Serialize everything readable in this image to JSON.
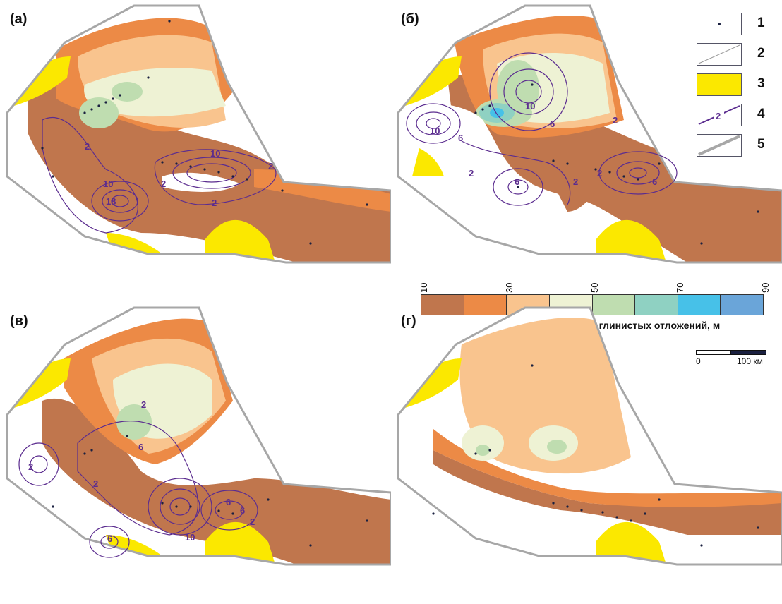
{
  "panels": [
    {
      "label": "(а)",
      "contour_labels": [
        "2",
        "10",
        "18",
        "10",
        "2",
        "2",
        "2"
      ]
    },
    {
      "label": "(б)",
      "contour_labels": [
        "10",
        "6",
        "10",
        "6",
        "2",
        "6",
        "2",
        "2",
        "6",
        "2"
      ]
    },
    {
      "label": "(в)",
      "contour_labels": [
        "2",
        "6",
        "2",
        "2",
        "6",
        "10",
        "6",
        "6",
        "2"
      ]
    },
    {
      "label": "(г)",
      "contour_labels": []
    }
  ],
  "legend": {
    "items": [
      {
        "num": "1",
        "symbol": "well-dot"
      },
      {
        "num": "2",
        "symbol": "thin-diagonal-line"
      },
      {
        "num": "3",
        "symbol": "yellow-fill"
      },
      {
        "num": "4",
        "symbol": "purple-isoline",
        "sample_label": "2"
      },
      {
        "num": "5",
        "symbol": "gray-thick-line"
      }
    ]
  },
  "thickness_scale": {
    "ticks": [
      "10",
      "30",
      "50",
      "70",
      "90"
    ],
    "title": "Шкала изопахит глинистых отложений, м",
    "colors": [
      "#c0764d",
      "#ec8a46",
      "#f9c48e",
      "#eef2d4",
      "#bfddb0",
      "#8fd1c2",
      "#47c1e8",
      "#6aa5d9"
    ]
  },
  "km_scale": {
    "zero": "0",
    "label": "100 км"
  },
  "colors": {
    "outline": "#a7a7a7",
    "isoline": "#5b2c8f",
    "yellow": "#fbe800",
    "dot": "#1a2040"
  }
}
